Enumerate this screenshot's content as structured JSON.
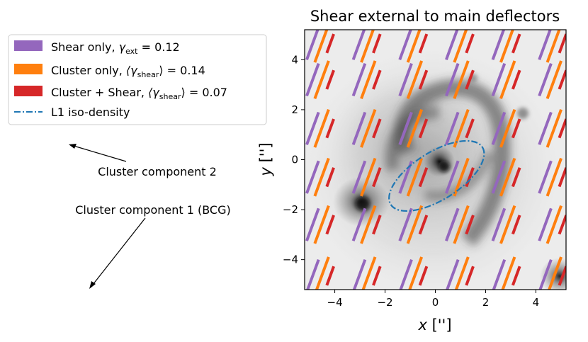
{
  "chart_data": {
    "type": "scatter",
    "title": "Shear external to main deflectors",
    "xlabel": "x ['']",
    "ylabel": "y ['']",
    "xlim": [
      -5.2,
      5.2
    ],
    "ylim": [
      -5.2,
      5.2
    ],
    "xticks": [
      -4,
      -2,
      0,
      2,
      4
    ],
    "yticks": [
      -4,
      -2,
      0,
      2,
      4
    ],
    "grid": false,
    "background": "lensed galaxy image (grayscale)",
    "sticks": {
      "grid_x": [
        -4.7,
        -2.85,
        -1.0,
        0.85,
        2.7,
        4.55
      ],
      "grid_y": [
        -4.65,
        -2.6,
        -0.7,
        1.25,
        3.2,
        4.65
      ],
      "length_scale_per_gamma": 11.5
    },
    "series": [
      {
        "name": "Shear only",
        "math_symbol": "γ",
        "math_sub": "ext",
        "math_rhs": " = 0.12",
        "gamma": 0.12,
        "color": "#9467bd",
        "offset": -0.18
      },
      {
        "name": "Cluster only",
        "math_symbol": "⟨γ",
        "math_sub": "shear",
        "math_rhs": "⟩ = 0.14",
        "gamma": 0.14,
        "color": "#ff7f0e",
        "offset": 0.18
      },
      {
        "name": "Cluster + Shear",
        "math_symbol": "⟨γ",
        "math_sub": "shear",
        "math_rhs": "⟩ = 0.07",
        "gamma": 0.07,
        "color": "#d62728",
        "offset": 0.52
      },
      {
        "name": "L1 iso-density",
        "math_symbol": "",
        "math_sub": "",
        "math_rhs": "",
        "color": "#1f77b4",
        "ellipse": {
          "center": [
            0.05,
            -0.65
          ],
          "semi_major": 2.15,
          "semi_minor": 0.95,
          "angle_deg": 32
        }
      }
    ],
    "legend": {
      "position": "top-left",
      "entries": [
        {
          "label_prefix": "Shear only, "
        },
        {
          "label_prefix": "Cluster only, "
        },
        {
          "label_prefix": "Cluster + Shear, "
        },
        {
          "label_prefix": "L1 iso-density"
        }
      ]
    },
    "annotations": [
      {
        "text": "Cluster component 2"
      },
      {
        "text": "Cluster component 1 (BCG)"
      }
    ]
  }
}
